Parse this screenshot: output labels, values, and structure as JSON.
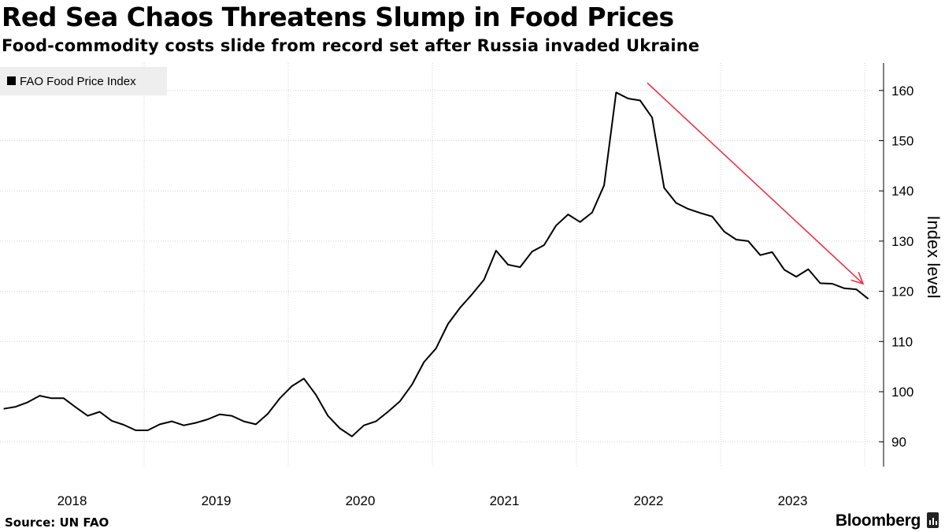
{
  "title": "Red Sea Chaos Threatens Slump in Food Prices",
  "subtitle": "Food-commodity costs slide from record set after Russia invaded Ukraine",
  "source": "Source: UN FAO",
  "brand": "Bloomberg",
  "colors": {
    "line": "#000000",
    "arrow": "#e8344a",
    "grid": "#cfcfcf",
    "legend_bg": "#eeeeee"
  },
  "chart_data": {
    "type": "line",
    "title": "Red Sea Chaos Threatens Slump in Food Prices",
    "ylabel": "Index level",
    "xlabel": "",
    "ylim": [
      85,
      166
    ],
    "xlim": [
      2017.8,
      2023.8
    ],
    "y_ticks": [
      90,
      100,
      110,
      120,
      130,
      140,
      150,
      160
    ],
    "x_tick_labels": [
      "2018",
      "2019",
      "2020",
      "2021",
      "2022",
      "2023"
    ],
    "legend": [
      "FAO Food Price Index"
    ],
    "legend_position": "top-left",
    "grid": true,
    "annotations": [
      {
        "type": "arrow",
        "from": [
          2022.0,
          161.5
        ],
        "to": [
          2023.7,
          121.5
        ],
        "description": "downward trend arrow"
      }
    ],
    "series": [
      {
        "name": "FAO Food Price Index",
        "x_start": 2018.0,
        "step": 0.0833333,
        "values": [
          96.6,
          97.0,
          97.9,
          99.2,
          98.7,
          98.7,
          96.9,
          95.2,
          96.0,
          94.2,
          93.4,
          92.3,
          92.3,
          93.5,
          94.1,
          93.3,
          93.8,
          94.5,
          95.5,
          95.2,
          94.1,
          93.5,
          95.6,
          98.7,
          101.1,
          102.6,
          99.4,
          95.2,
          92.7,
          91.1,
          93.3,
          94.1,
          96.0,
          98.1,
          101.4,
          105.9,
          108.6,
          113.5,
          116.7,
          119.4,
          122.3,
          128.1,
          125.3,
          124.8,
          127.9,
          129.2,
          133.1,
          135.3,
          133.8,
          135.7,
          141.1,
          159.6,
          158.4,
          158.0,
          154.6,
          140.6,
          137.6,
          136.4,
          135.6,
          134.9,
          131.9,
          130.3,
          130.0,
          127.2,
          127.8,
          124.3,
          122.9,
          124.4,
          121.6,
          121.5,
          120.6,
          120.4,
          118.5
        ]
      }
    ]
  }
}
